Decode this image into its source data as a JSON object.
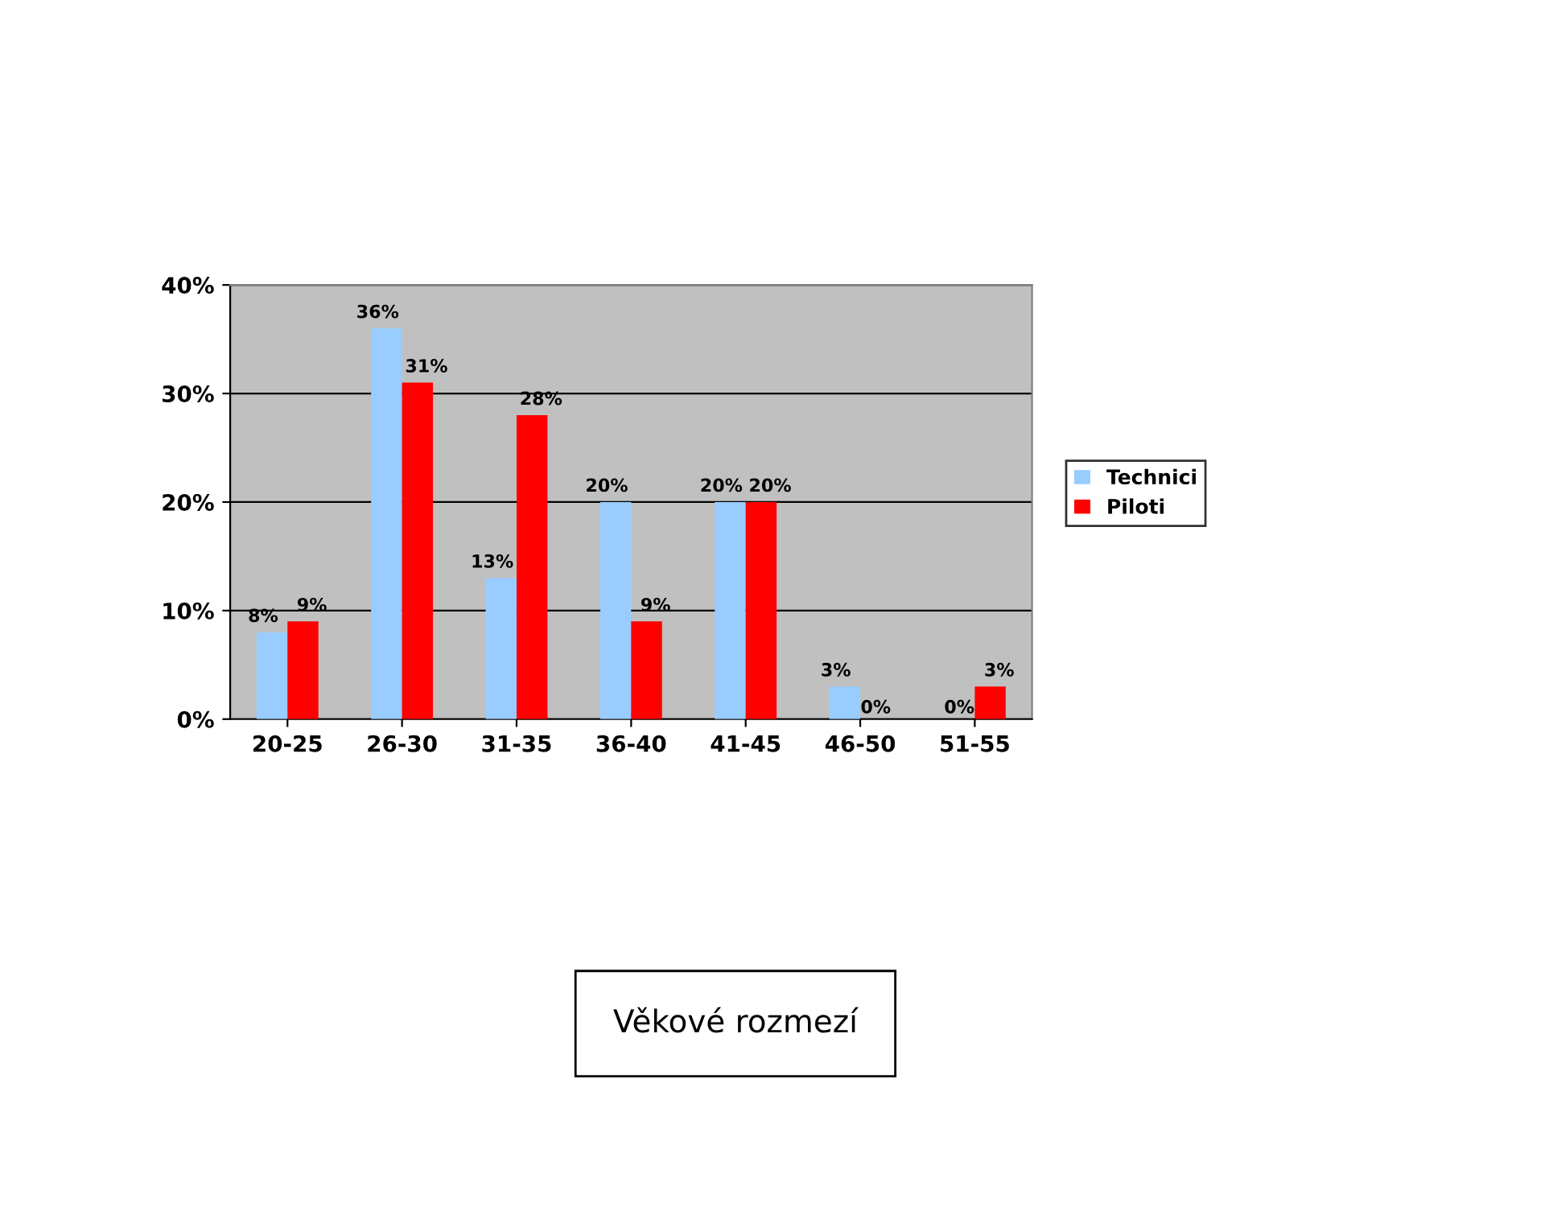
{
  "chart_data": {
    "type": "bar",
    "annotations": [
      "Věkové rozmezí"
    ],
    "categories": [
      "20-25",
      "26-30",
      "31-35",
      "36-40",
      "41-45",
      "46-50",
      "51-55"
    ],
    "series": [
      {
        "name": "Technici",
        "color": "#99ccff",
        "values": [
          8,
          36,
          13,
          20,
          20,
          3,
          0
        ],
        "value_labels": [
          "8%",
          "36%",
          "13%",
          "20%",
          "20%",
          "3%",
          "0%"
        ]
      },
      {
        "name": "Piloti",
        "color": "#ff0000",
        "values": [
          9,
          31,
          28,
          9,
          20,
          0,
          3
        ],
        "value_labels": [
          "9%",
          "31%",
          "28%",
          "9%",
          "20%",
          "0%",
          "3%"
        ]
      }
    ],
    "ylim": [
      0,
      40
    ],
    "yticks": [
      {
        "value": 0,
        "label": "0%"
      },
      {
        "value": 10,
        "label": "10%"
      },
      {
        "value": 20,
        "label": "20%"
      },
      {
        "value": 30,
        "label": "30%"
      },
      {
        "value": 40,
        "label": "40%"
      }
    ],
    "grid": "y",
    "legend": "right"
  }
}
